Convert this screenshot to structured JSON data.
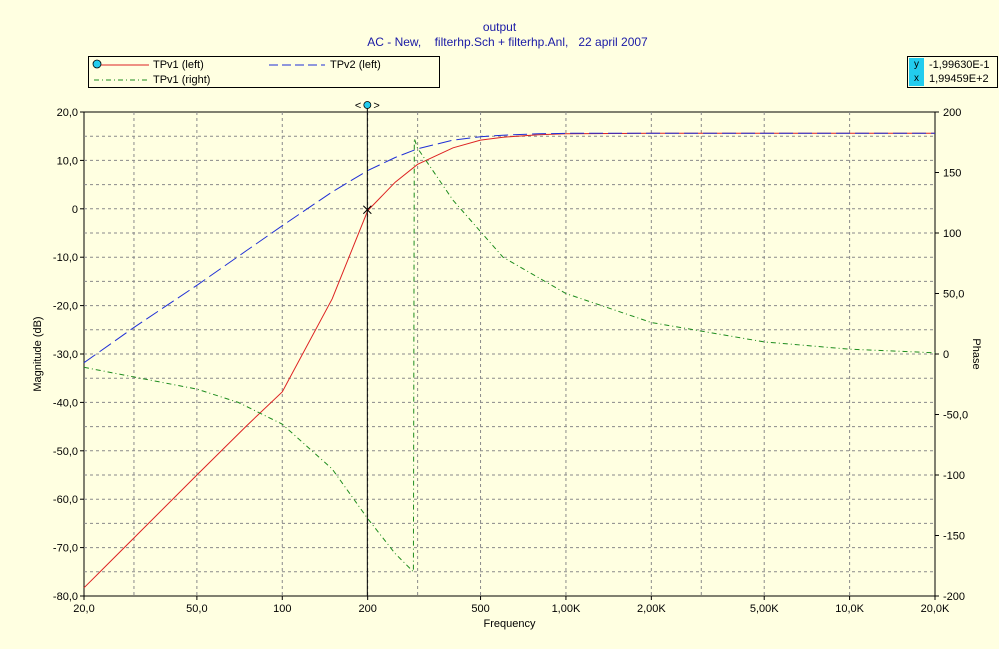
{
  "colors": {
    "background": "#ffffe1",
    "title": "#1a1aa6",
    "tpv1_left": "#dd2222",
    "tpv2_left": "#1f2fd6",
    "tpv1_right": "#1e8c1e",
    "readout_key": "#22ccee",
    "grid": "#8a8a8a"
  },
  "header": {
    "title": "output",
    "subtitle": "AC - New,    filterhp.Sch + filterhp.Anl,   22 april 2007"
  },
  "legend": {
    "items": [
      {
        "label": "TPv1 (left)",
        "color": "#dd2222",
        "dash": "solid",
        "marker": "cursor-handle-icon"
      },
      {
        "label": "TPv2 (left)",
        "color": "#1f2fd6",
        "dash": "long-dash"
      },
      {
        "label": "TPv1 (right)",
        "color": "#1e8c1e",
        "dash": "dash-dot"
      }
    ]
  },
  "readout": {
    "y_key": "y",
    "y_value": "-1,99630E-1",
    "x_key": "x",
    "x_value": "1,99459E+2"
  },
  "cursor": {
    "x": 199.459,
    "y": -0.19963,
    "handle_icon": "cursor-handle-icon",
    "handle_text": "<",
    "handle_text_right": ">"
  },
  "chart_data": {
    "type": "line",
    "x_scale": "log",
    "xlim": [
      20,
      20000
    ],
    "ylim_left": [
      -80,
      20
    ],
    "ylim_right": [
      -200,
      200
    ],
    "grid": true,
    "xlabel": "Frequency",
    "ylabel_left": "Magnitude  (dB)",
    "ylabel_right": "Phase",
    "x_ticks": [
      {
        "v": 20,
        "label": "20,0"
      },
      {
        "v": 50,
        "label": "50,0"
      },
      {
        "v": 100,
        "label": "100"
      },
      {
        "v": 200,
        "label": "200"
      },
      {
        "v": 500,
        "label": "500"
      },
      {
        "v": 1000,
        "label": "1,00K"
      },
      {
        "v": 2000,
        "label": "2,00K"
      },
      {
        "v": 5000,
        "label": "5,00K"
      },
      {
        "v": 10000,
        "label": "10,0K"
      },
      {
        "v": 20000,
        "label": "20,0K"
      }
    ],
    "x_minor_gridlines": [
      30,
      300,
      3000
    ],
    "y_left_ticks": [
      {
        "v": 20,
        "label": "20,0"
      },
      {
        "v": 10,
        "label": "10,0"
      },
      {
        "v": 0,
        "label": "0"
      },
      {
        "v": -10,
        "label": "-10,0"
      },
      {
        "v": -20,
        "label": "-20,0"
      },
      {
        "v": -30,
        "label": "-30,0"
      },
      {
        "v": -40,
        "label": "-40,0"
      },
      {
        "v": -50,
        "label": "-50,0"
      },
      {
        "v": -60,
        "label": "-60,0"
      },
      {
        "v": -70,
        "label": "-70,0"
      },
      {
        "v": -80,
        "label": "-80,0"
      }
    ],
    "y_right_ticks": [
      {
        "v": 200,
        "label": "200"
      },
      {
        "v": 150,
        "label": "150"
      },
      {
        "v": 100,
        "label": "100"
      },
      {
        "v": 50,
        "label": "50,0"
      },
      {
        "v": 0,
        "label": "0"
      },
      {
        "v": -50,
        "label": "-50,0"
      },
      {
        "v": -100,
        "label": "-100"
      },
      {
        "v": -150,
        "label": "-150"
      },
      {
        "v": -200,
        "label": "-200"
      }
    ],
    "series": [
      {
        "name": "TPv1 (left)",
        "axis": "left",
        "color": "#dd2222",
        "dash": "solid",
        "x": [
          20,
          30,
          50,
          75,
          100,
          150,
          200,
          250,
          300,
          400,
          500,
          600,
          800,
          1000,
          2000,
          5000,
          10000,
          20000
        ],
        "y": [
          -78.3,
          -68,
          -55,
          -44.8,
          -37.8,
          -18.6,
          -0.4,
          5.5,
          9.2,
          12.6,
          14.2,
          14.8,
          15.3,
          15.5,
          15.6,
          15.6,
          15.6,
          15.6
        ]
      },
      {
        "name": "TPv2 (left)",
        "axis": "left",
        "color": "#1f2fd6",
        "dash": "long-dash",
        "x": [
          20,
          30,
          50,
          75,
          100,
          150,
          200,
          250,
          300,
          400,
          500,
          600,
          800,
          1000,
          2000,
          5000,
          10000,
          20000
        ],
        "y": [
          -31.8,
          -24.5,
          -15.8,
          -8.6,
          -3.5,
          3.5,
          7.9,
          10.6,
          12.4,
          14.2,
          14.9,
          15.2,
          15.5,
          15.6,
          15.6,
          15.6,
          15.6,
          15.6
        ]
      },
      {
        "name": "TPv1 (right)",
        "axis": "right",
        "color": "#1e8c1e",
        "dash": "dash-dot",
        "x": [
          20,
          30,
          50,
          70,
          100,
          150,
          200,
          250,
          290,
          292,
          300,
          400,
          600,
          1000,
          2000,
          5000,
          10000,
          20000
        ],
        "y": [
          -11,
          -19,
          -29,
          -40,
          -58,
          -95,
          -136,
          -165,
          -180,
          178,
          170,
          127,
          80,
          50,
          26,
          10,
          4,
          1
        ]
      }
    ]
  }
}
